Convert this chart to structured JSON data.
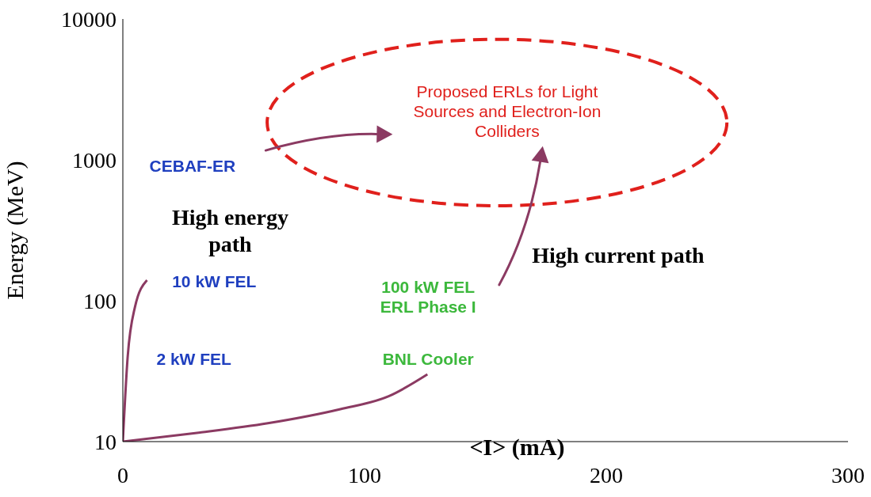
{
  "chart_data": {
    "type": "line",
    "xlabel": "<I> (mA)",
    "ylabel": "Energy (MeV)",
    "log": "y",
    "xlim": [
      0,
      300
    ],
    "xticks": [
      0,
      100,
      200,
      300
    ],
    "ylim": [
      10,
      10000
    ],
    "yticks": [
      10,
      100,
      1000,
      10000
    ],
    "line_style": "solid",
    "series": [
      {
        "color": "#8b3a62",
        "x": [
          0,
          2,
          5,
          10
        ],
        "values": [
          10,
          40,
          90,
          140
        ]
      },
      {
        "color": "#8b3a62",
        "x": [
          0,
          30,
          60,
          90,
          110,
          126
        ],
        "values": [
          10,
          11.5,
          13.5,
          17,
          21,
          30
        ]
      }
    ],
    "annotations": [
      "Proposed ERLs for Light\nSources and Electron-Ion\nColliders",
      "CEBAF-ER",
      "High energy\npath",
      "10 kW FEL",
      "2 kW FEL",
      "100 kW FEL\nERL Phase I",
      "BNL Cooler",
      "High current path"
    ]
  }
}
